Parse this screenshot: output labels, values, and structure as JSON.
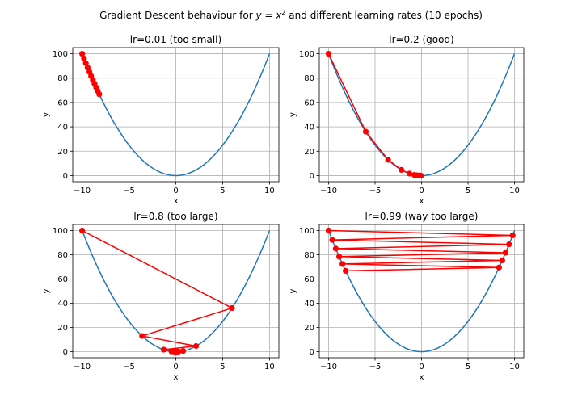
{
  "figure": {
    "title_prefix": "Gradient Descent behaviour for ",
    "title_math": "y = x",
    "title_sup": "2",
    "title_suffix": " and different learning rates (10 epochs)"
  },
  "style": {
    "curve_color": "#1f77b4",
    "path_color": "#ff0000",
    "grid_color": "#b0b0b0"
  },
  "chart_data": [
    {
      "type": "line",
      "title": "lr=0.01 (too small)",
      "xlabel": "x",
      "ylabel": "y",
      "xlim": [
        -11,
        11
      ],
      "ylim": [
        -5,
        105
      ],
      "xticks": [
        -10,
        -5,
        0,
        5,
        10
      ],
      "yticks": [
        0,
        20,
        40,
        60,
        80,
        100
      ],
      "grid": true,
      "series": [
        {
          "kind": "line",
          "function": "y = x^2",
          "x_range": [
            -10,
            10
          ]
        },
        {
          "kind": "line-markers",
          "x": [
            -10,
            -9.8,
            -9.604,
            -9.412,
            -9.224,
            -9.039,
            -8.858,
            -8.681,
            -8.508,
            -8.337,
            -8.171
          ],
          "y": [
            100,
            96.04,
            92.24,
            88.58,
            85.08,
            81.7,
            78.47,
            75.36,
            72.39,
            69.5,
            66.76
          ]
        }
      ]
    },
    {
      "type": "line",
      "title": "lr=0.2 (good)",
      "xlabel": "x",
      "ylabel": "y",
      "xlim": [
        -11,
        11
      ],
      "ylim": [
        -5,
        105
      ],
      "xticks": [
        -10,
        -5,
        0,
        5,
        10
      ],
      "yticks": [
        0,
        20,
        40,
        60,
        80,
        100
      ],
      "grid": true,
      "series": [
        {
          "kind": "line",
          "function": "y = x^2",
          "x_range": [
            -10,
            10
          ]
        },
        {
          "kind": "line-markers",
          "x": [
            -10,
            -6,
            -3.6,
            -2.16,
            -1.296,
            -0.778,
            -0.467,
            -0.28,
            -0.168,
            -0.101,
            -0.06
          ],
          "y": [
            100,
            36,
            12.96,
            4.67,
            1.68,
            0.6,
            0.22,
            0.08,
            0.03,
            0.01,
            0.0
          ]
        }
      ]
    },
    {
      "type": "line",
      "title": "lr=0.8 (too large)",
      "xlabel": "x",
      "ylabel": "y",
      "xlim": [
        -11,
        11
      ],
      "ylim": [
        -5,
        105
      ],
      "xticks": [
        -10,
        -5,
        0,
        5,
        10
      ],
      "yticks": [
        0,
        20,
        40,
        60,
        80,
        100
      ],
      "grid": true,
      "series": [
        {
          "kind": "line",
          "function": "y = x^2",
          "x_range": [
            -10,
            10
          ]
        },
        {
          "kind": "line-markers",
          "x": [
            -10,
            6,
            -3.6,
            2.16,
            -1.296,
            0.778,
            -0.467,
            0.28,
            -0.168,
            0.101,
            -0.06
          ],
          "y": [
            100,
            36,
            12.96,
            4.67,
            1.68,
            0.6,
            0.22,
            0.08,
            0.03,
            0.01,
            0.0
          ]
        }
      ]
    },
    {
      "type": "line",
      "title": "lr=0.99 (way too large)",
      "xlabel": "x",
      "ylabel": "y",
      "xlim": [
        -11,
        11
      ],
      "ylim": [
        -5,
        105
      ],
      "xticks": [
        -10,
        -5,
        0,
        5,
        10
      ],
      "yticks": [
        0,
        20,
        40,
        60,
        80,
        100
      ],
      "grid": true,
      "series": [
        {
          "kind": "line",
          "function": "y = x^2",
          "x_range": [
            -10,
            10
          ]
        },
        {
          "kind": "line-markers",
          "x": [
            -10,
            9.8,
            -9.604,
            9.412,
            -9.224,
            9.039,
            -8.858,
            8.681,
            -8.508,
            8.337,
            -8.171
          ],
          "y": [
            100,
            96.04,
            92.24,
            88.58,
            85.08,
            81.7,
            78.47,
            75.36,
            72.39,
            69.5,
            66.76
          ]
        }
      ]
    }
  ]
}
